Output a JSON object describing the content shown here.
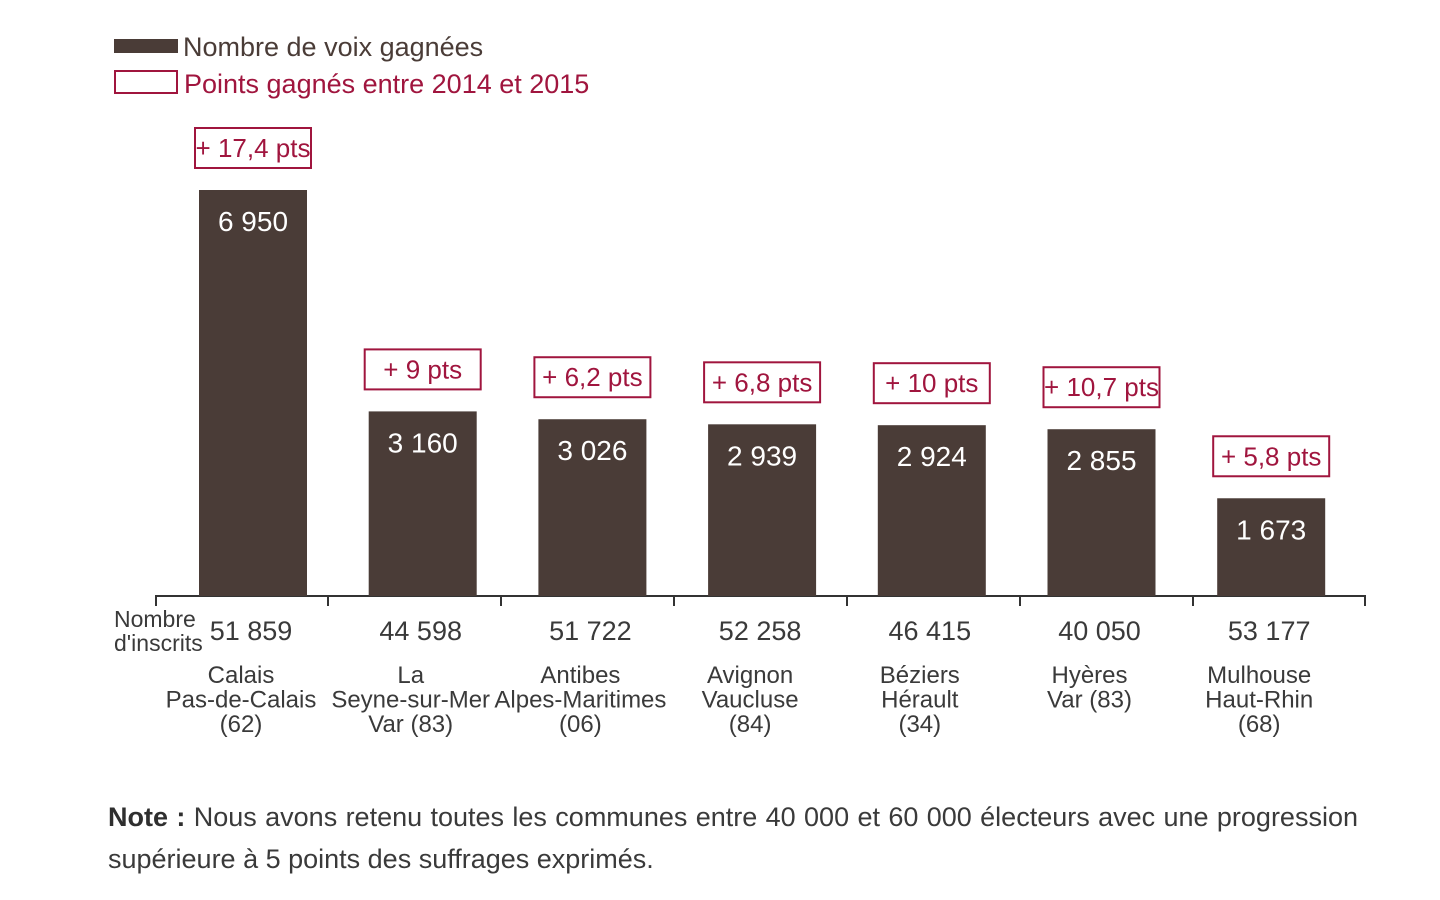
{
  "chart_data": {
    "type": "bar",
    "legend": {
      "bars_label": "Nombre de voix gagnées",
      "badges_label": "Points gagnés entre 2014 et 2015"
    },
    "axis_label_lines": [
      "Nombre",
      "d'inscrits"
    ],
    "categories": [
      {
        "city_lines": [
          "Calais",
          "Pas-de-Calais",
          "(62)"
        ],
        "inscrits": "51 859",
        "value": 6950,
        "value_label": "6 950",
        "points": 17.4,
        "points_label": "+ 17,4 pts"
      },
      {
        "city_lines": [
          "La",
          "Seyne-sur-Mer",
          "Var (83)"
        ],
        "inscrits": "44 598",
        "value": 3160,
        "value_label": "3 160",
        "points": 9,
        "points_label": "+ 9 pts"
      },
      {
        "city_lines": [
          "Antibes",
          "Alpes-Maritimes",
          "(06)"
        ],
        "inscrits": "51 722",
        "value": 3026,
        "value_label": "3 026",
        "points": 6.2,
        "points_label": "+ 6,2 pts"
      },
      {
        "city_lines": [
          "Avignon",
          "Vaucluse",
          "(84)"
        ],
        "inscrits": "52 258",
        "value": 2939,
        "value_label": "2 939",
        "points": 6.8,
        "points_label": "+ 6,8 pts"
      },
      {
        "city_lines": [
          "Béziers",
          "Hérault",
          "(34)"
        ],
        "inscrits": "46 415",
        "value": 2924,
        "value_label": "2 924",
        "points": 10,
        "points_label": "+ 10 pts"
      },
      {
        "city_lines": [
          "Hyères",
          "Var (83)"
        ],
        "inscrits": "40 050",
        "value": 2855,
        "value_label": "2 855",
        "points": 10.7,
        "points_label": "+ 10,7 pts"
      },
      {
        "city_lines": [
          "Mulhouse",
          "Haut-Rhin",
          "(68)"
        ],
        "inscrits": "53 177",
        "value": 1673,
        "value_label": "1 673",
        "points": 5.8,
        "points_label": "+ 5,8 pts"
      }
    ],
    "ylim": [
      0,
      6950
    ]
  },
  "colors": {
    "bar": "#4a3c37",
    "accent": "#a0153e",
    "text": "#3a3a3a"
  },
  "note": {
    "label": "Note :",
    "text": "Nous avons retenu toutes les communes entre 40 000 et 60 000 électeurs avec une progression supérieure à 5 points des suffrages exprimés."
  }
}
